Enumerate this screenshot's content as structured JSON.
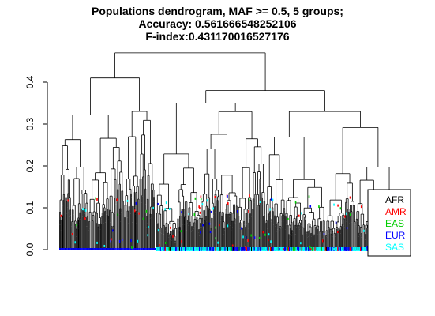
{
  "chart_data": {
    "type": "dendrogram",
    "title_lines": [
      "Populations dendrogram, MAF >= 0.5, 5 groups;",
      "Accuracy: 0.561666548252106",
      "F-index:0.431170016527176"
    ],
    "xlabel": "",
    "ylabel": "",
    "ylim": [
      0,
      0.45
    ],
    "yticks": [
      {
        "value": 0.0,
        "label": "0.0"
      },
      {
        "value": 0.1,
        "label": "0.1"
      },
      {
        "value": 0.2,
        "label": "0.2"
      },
      {
        "value": 0.3,
        "label": "0.3"
      },
      {
        "value": 0.4,
        "label": "0.4"
      }
    ],
    "merge_heights": {
      "root": 0.47,
      "left_cluster": 0.41,
      "right_cluster": 0.38,
      "right_subcluster_a": 0.35,
      "right_subcluster_b": 0.33
    },
    "legend": {
      "position": "bottom-right",
      "entries": [
        {
          "label": "AFR",
          "color": "#000000"
        },
        {
          "label": "AMR",
          "color": "#ff0000"
        },
        {
          "label": "EAS",
          "color": "#00cd00"
        },
        {
          "label": "EUR",
          "color": "#0000ff"
        },
        {
          "label": "SAS",
          "color": "#00ffff"
        }
      ]
    }
  }
}
